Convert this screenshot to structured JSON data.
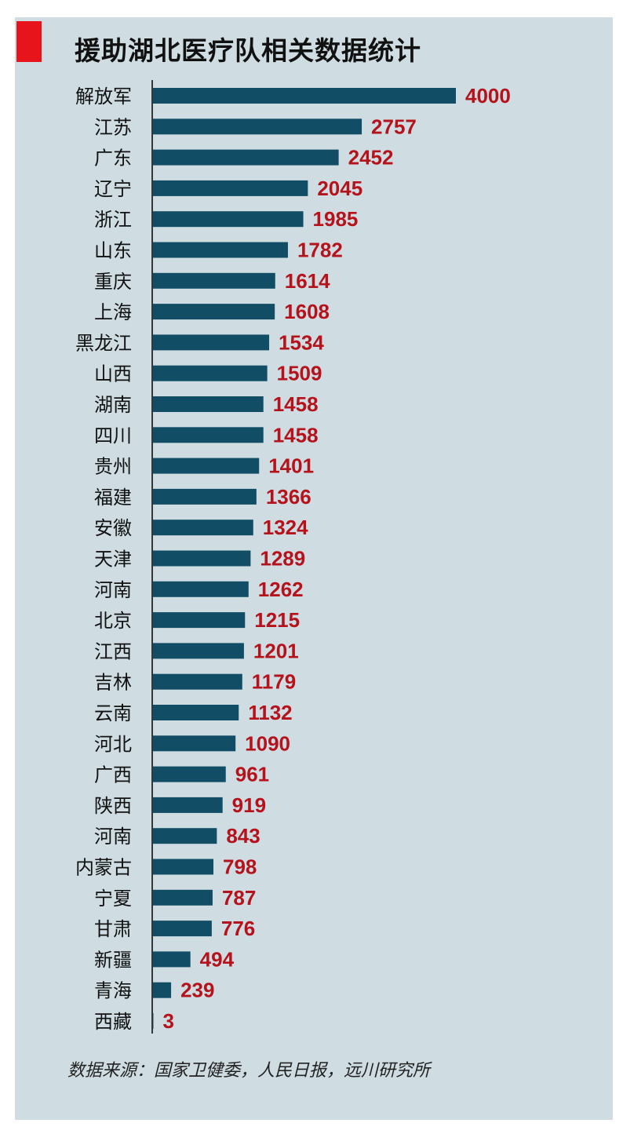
{
  "title": "援助湖北医疗队相关数据统计",
  "source": "数据来源：国家卫健委，人民日报，远川研究所",
  "colors": {
    "bar": "#114e66",
    "value": "#b5121b",
    "accent": "#e8141b",
    "panel": "#cfdde3"
  },
  "chart_data": {
    "type": "bar",
    "orientation": "horizontal",
    "title": "援助湖北医疗队相关数据统计",
    "xlim": [
      0,
      4000
    ],
    "grid": false,
    "categories": [
      "解放军",
      "江苏",
      "广东",
      "辽宁",
      "浙江",
      "山东",
      "重庆",
      "上海",
      "黑龙江",
      "山西",
      "湖南",
      "四川",
      "贵州",
      "福建",
      "安徽",
      "天津",
      "河南",
      "北京",
      "江西",
      "吉林",
      "云南",
      "河北",
      "广西",
      "陕西",
      "河南",
      "内蒙古",
      "宁夏",
      "甘肃",
      "新疆",
      "青海",
      "西藏"
    ],
    "values": [
      4000,
      2757,
      2452,
      2045,
      1985,
      1782,
      1614,
      1608,
      1534,
      1509,
      1458,
      1458,
      1401,
      1366,
      1324,
      1289,
      1262,
      1215,
      1201,
      1179,
      1132,
      1090,
      961,
      919,
      843,
      798,
      787,
      776,
      494,
      239,
      3
    ]
  }
}
